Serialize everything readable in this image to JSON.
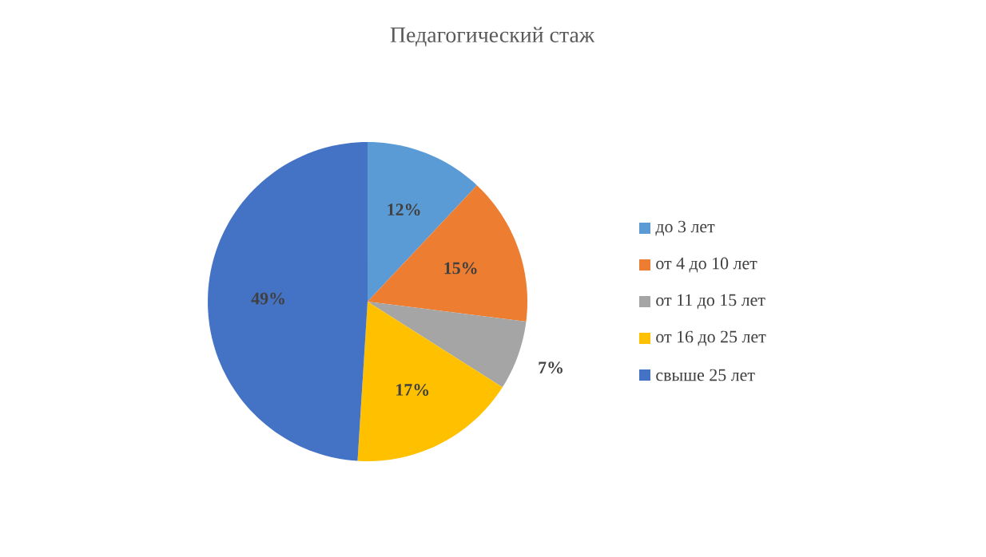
{
  "chart_data": {
    "type": "pie",
    "title": "Педагогический стаж",
    "categories": [
      "до 3 лет",
      "от 4 до 10 лет",
      "от 11 до 15 лет",
      "от 16 до 25 лет",
      "свыше 25 лет"
    ],
    "values": [
      12,
      15,
      7,
      17,
      49
    ],
    "value_labels": [
      "12%",
      "15%",
      "7%",
      "17%",
      "49%"
    ],
    "colors": [
      "#5b9bd5",
      "#ed7d31",
      "#a5a5a5",
      "#ffc000",
      "#4472c4"
    ],
    "legend": "right"
  }
}
